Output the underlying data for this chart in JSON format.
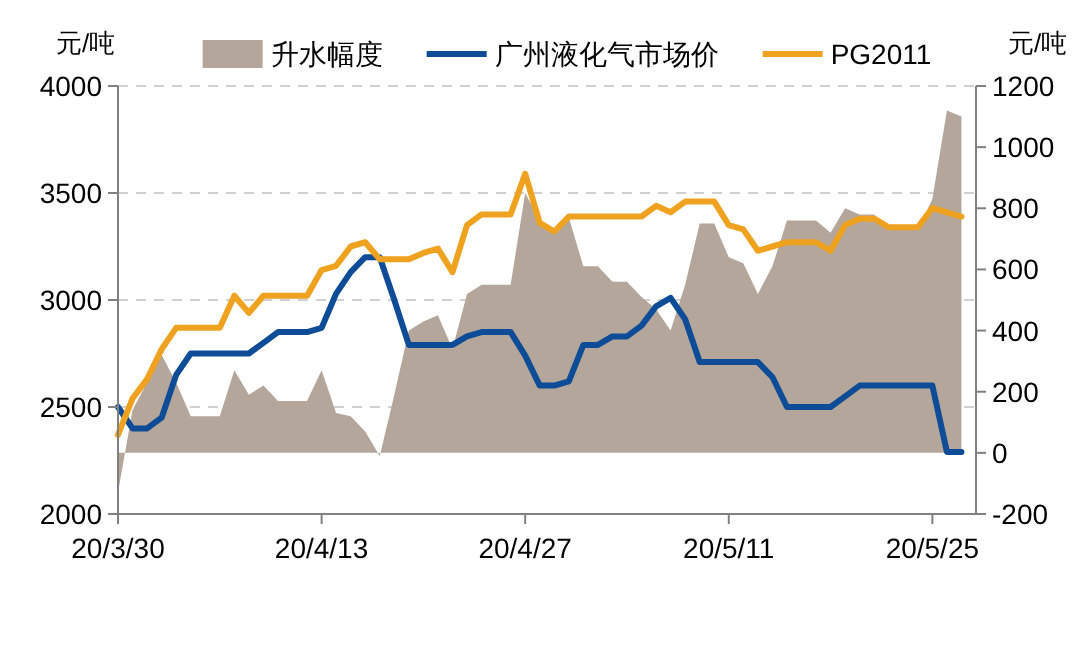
{
  "chart_data": {
    "type": "line",
    "ylabel": "元/吨",
    "y2label": "元/吨",
    "x": [
      "--03-30",
      "--03-31",
      "--04-01",
      "--04-02",
      "--04-03",
      "--04-04",
      "--04-05",
      "--04-06",
      "--04-07",
      "--04-08",
      "--04-09",
      "--04-10",
      "--04-11",
      "--04-12",
      "--04-13",
      "--04-14",
      "--04-15",
      "--04-16",
      "--04-17",
      "--04-18",
      "--04-19",
      "--04-20",
      "--04-21",
      "--04-22",
      "--04-23",
      "--04-24",
      "--04-25",
      "--04-26",
      "--04-27",
      "--04-28",
      "--04-29",
      "--04-30",
      "--05-01",
      "--05-02",
      "--05-03",
      "--05-04",
      "--05-05",
      "--05-06",
      "--05-07",
      "--05-08",
      "--05-09",
      "--05-10",
      "--05-11",
      "--05-12",
      "--05-13",
      "--05-14",
      "--05-15",
      "--05-16",
      "--05-17",
      "--05-18",
      "--05-19",
      "--05-20",
      "--05-21",
      "--05-22",
      "--05-23",
      "--05-24",
      "--05-25",
      "--05-26",
      "--05-27"
    ],
    "series": [
      {
        "name": "升水幅度",
        "type": "area",
        "axis": "y2",
        "color": "#b4a69b",
        "values": [
          -130,
          140,
          230,
          320,
          230,
          120,
          120,
          120,
          270,
          190,
          220,
          170,
          170,
          170,
          270,
          130,
          120,
          70,
          -10,
          190,
          400,
          430,
          450,
          340,
          520,
          550,
          550,
          550,
          850,
          760,
          720,
          770,
          610,
          610,
          560,
          560,
          510,
          470,
          400,
          550,
          750,
          750,
          640,
          620,
          520,
          610,
          760,
          760,
          760,
          720,
          800,
          780,
          780,
          730,
          730,
          730,
          830,
          1120,
          1100
        ]
      },
      {
        "name": "广州液化气市场价",
        "color": "#0f4c97",
        "values": [
          2500,
          2400,
          2400,
          2450,
          2650,
          2750,
          2750,
          2750,
          2750,
          2750,
          2800,
          2850,
          2850,
          2850,
          2870,
          3030,
          3130,
          3200,
          3200,
          3000,
          2790,
          2790,
          2790,
          2790,
          2830,
          2850,
          2850,
          2850,
          2740,
          2600,
          2600,
          2620,
          2790,
          2790,
          2830,
          2830,
          2880,
          2970,
          3010,
          2910,
          2710,
          2710,
          2710,
          2710,
          2710,
          2640,
          2500,
          2500,
          2500,
          2500,
          2550,
          2600,
          2600,
          2600,
          2600,
          2600,
          2600,
          2290,
          2290
        ]
      },
      {
        "name": "PG2011",
        "color": "#eea21f",
        "values": [
          2370,
          2540,
          2630,
          2770,
          2870,
          2870,
          2870,
          2870,
          3020,
          2940,
          3020,
          3020,
          3020,
          3020,
          3140,
          3160,
          3250,
          3270,
          3190,
          3190,
          3190,
          3220,
          3240,
          3130,
          3350,
          3400,
          3400,
          3400,
          3590,
          3360,
          3320,
          3390,
          3390,
          3390,
          3390,
          3390,
          3390,
          3440,
          3410,
          3460,
          3460,
          3460,
          3350,
          3330,
          3230,
          3250,
          3270,
          3270,
          3270,
          3230,
          3350,
          3380,
          3380,
          3340,
          3340,
          3340,
          3430,
          3410,
          3390
        ]
      }
    ],
    "xlim": [
      "--03-30",
      "--05-28"
    ],
    "xticks": [
      {
        "value": "--03-30",
        "label": "20/3/30"
      },
      {
        "value": "--04-13",
        "label": "20/4/13"
      },
      {
        "value": "--04-27",
        "label": "20/4/27"
      },
      {
        "value": "--05-11",
        "label": "20/5/11"
      },
      {
        "value": "--05-25",
        "label": "20/5/25"
      }
    ],
    "ylim": [
      2000,
      4000
    ],
    "yticks": [
      2000,
      2500,
      3000,
      3500,
      4000
    ],
    "y2lim": [
      -200,
      1200
    ],
    "y2ticks": [
      -200,
      0,
      200,
      400,
      600,
      800,
      1000,
      1200
    ],
    "grid": "y",
    "legend": "top",
    "line_style": "solid"
  }
}
